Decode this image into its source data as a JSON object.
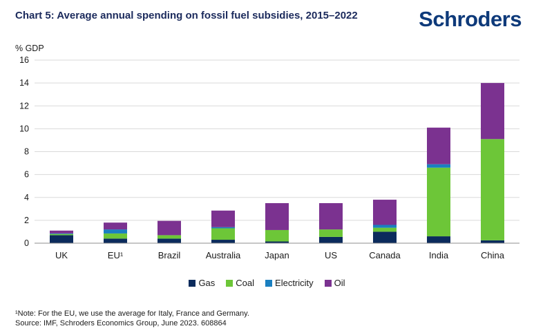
{
  "header": {
    "title": "Chart 5: Average annual spending on fossil fuel subsidies, 2015–2022",
    "logo_text": "Schroders"
  },
  "chart_data": {
    "type": "bar",
    "stacked": true,
    "title": "Chart 5: Average annual spending on fossil fuel subsidies, 2015–2022",
    "ylabel": "% GDP",
    "xlabel": "",
    "ylim": [
      0,
      16
    ],
    "yticks": [
      0,
      2,
      4,
      6,
      8,
      10,
      12,
      14,
      16
    ],
    "grid": true,
    "legend_position": "bottom",
    "categories": [
      "UK",
      "EU¹",
      "Brazil",
      "Australia",
      "Japan",
      "US",
      "Canada",
      "India",
      "China"
    ],
    "series": [
      {
        "name": "Gas",
        "color": "#0b2b5c",
        "values": [
          0.7,
          0.4,
          0.4,
          0.3,
          0.15,
          0.55,
          1.0,
          0.6,
          0.25
        ]
      },
      {
        "name": "Coal",
        "color": "#6dc638",
        "values": [
          0.1,
          0.45,
          0.3,
          1.0,
          1.0,
          0.65,
          0.35,
          6.0,
          8.85
        ]
      },
      {
        "name": "Electricity",
        "color": "#1a7fc0",
        "values": [
          0.05,
          0.35,
          0.0,
          0.1,
          0.0,
          0.0,
          0.25,
          0.3,
          0.0
        ]
      },
      {
        "name": "Oil",
        "color": "#7b3290",
        "values": [
          0.25,
          0.6,
          1.25,
          1.45,
          2.35,
          2.3,
          2.2,
          3.2,
          4.9
        ]
      }
    ]
  },
  "footnote": {
    "line1": "¹Note: For the EU, we use the average for Italy, France and Germany.",
    "line2": "Source: IMF, Schroders Economics Group, June 2023. 608864"
  }
}
